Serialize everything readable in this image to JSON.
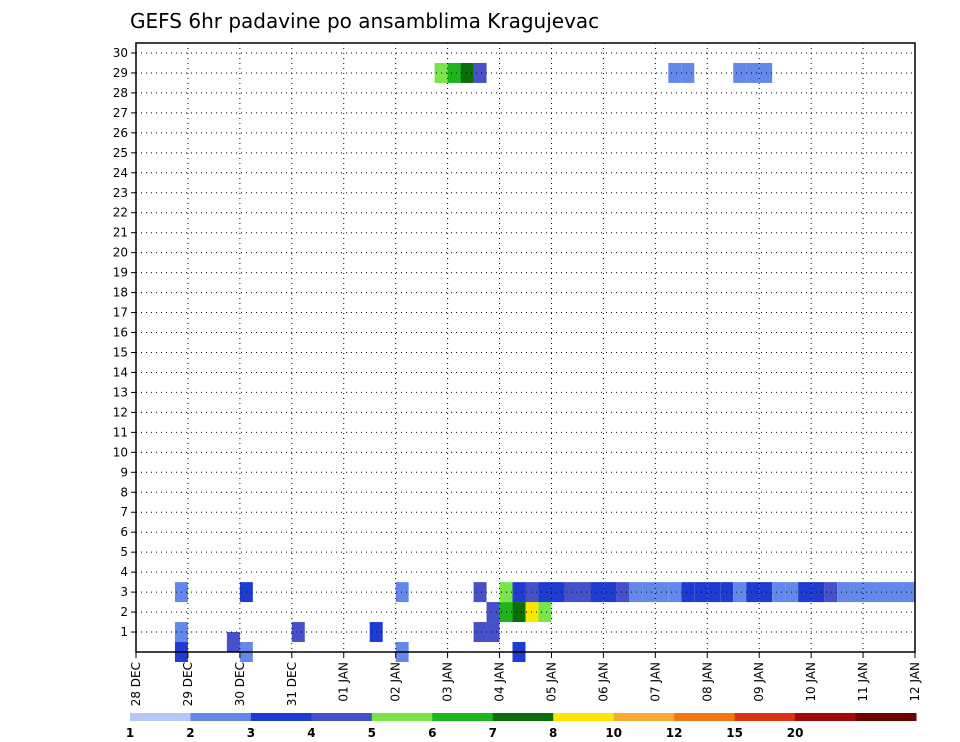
{
  "chart_data": {
    "type": "heatmap",
    "title": "GEFS 6hr padavine po ansamblima Kragujevac",
    "xlabel": "",
    "ylabel": "",
    "x_ticks": [
      "28 DEC",
      "29 DEC",
      "30 DEC",
      "31 DEC",
      "01 JAN",
      "02 JAN",
      "03 JAN",
      "04 JAN",
      "05 JAN",
      "06 JAN",
      "07 JAN",
      "08 JAN",
      "09 JAN",
      "10 JAN",
      "11 JAN",
      "12 JAN"
    ],
    "x_range": [
      0,
      60
    ],
    "x_step": "6 hr",
    "y_ticks": [
      1,
      2,
      3,
      4,
      5,
      6,
      7,
      8,
      9,
      10,
      11,
      12,
      13,
      14,
      15,
      16,
      17,
      18,
      19,
      20,
      21,
      22,
      23,
      24,
      25,
      26,
      27,
      28,
      29,
      30
    ],
    "y_range": [
      0,
      30.5
    ],
    "grid": true,
    "colorbar": {
      "levels": [
        "1",
        "2",
        "3",
        "4",
        "5",
        "6",
        "7",
        "8",
        "10",
        "12",
        "15",
        "20"
      ],
      "colors": [
        "#b4c8f5",
        "#6488ea",
        "#1e3cd2",
        "#4650c8",
        "#78e64b",
        "#1eb41e",
        "#0a6e0a",
        "#fae600",
        "#faaa32",
        "#f07814",
        "#dc3214",
        "#a00a0a",
        "#6e0000"
      ]
    },
    "cells": [
      [
        3,
        0.0,
        2
      ],
      [
        8,
        0.0,
        1
      ],
      [
        20,
        0.0,
        1
      ],
      [
        29,
        0.0,
        2
      ],
      [
        7,
        0.5,
        3
      ],
      [
        3,
        1.0,
        1
      ],
      [
        12,
        1.0,
        3
      ],
      [
        18,
        1.0,
        2
      ],
      [
        26,
        1.0,
        3
      ],
      [
        27,
        1.0,
        3
      ],
      [
        27,
        2.0,
        3
      ],
      [
        28,
        2.0,
        5
      ],
      [
        29,
        2.0,
        6
      ],
      [
        30,
        2.0,
        7
      ],
      [
        31,
        2.0,
        4
      ],
      [
        3,
        3.0,
        1
      ],
      [
        8,
        3.0,
        2
      ],
      [
        20,
        3.0,
        1
      ],
      [
        26,
        3.0,
        3
      ],
      [
        28,
        3.0,
        4
      ],
      [
        29,
        3.0,
        2
      ],
      [
        30,
        3.0,
        3
      ],
      [
        31,
        3.0,
        2
      ],
      [
        32,
        3.0,
        2
      ],
      [
        33,
        3.0,
        3
      ],
      [
        34,
        3.0,
        3
      ],
      [
        35,
        3.0,
        2
      ],
      [
        36,
        3.0,
        2
      ],
      [
        37,
        3.0,
        3
      ],
      [
        38,
        3.0,
        1
      ],
      [
        39,
        3.0,
        1
      ],
      [
        40,
        3.0,
        1
      ],
      [
        41,
        3.0,
        1
      ],
      [
        42,
        3.0,
        2
      ],
      [
        43,
        3.0,
        2
      ],
      [
        44,
        3.0,
        2
      ],
      [
        45,
        3.0,
        2
      ],
      [
        46,
        3.0,
        1
      ],
      [
        47,
        3.0,
        2
      ],
      [
        48,
        3.0,
        2
      ],
      [
        49,
        3.0,
        1
      ],
      [
        50,
        3.0,
        1
      ],
      [
        51,
        3.0,
        2
      ],
      [
        52,
        3.0,
        2
      ],
      [
        53,
        3.0,
        3
      ],
      [
        54,
        3.0,
        1
      ],
      [
        55,
        3.0,
        1
      ],
      [
        56,
        3.0,
        1
      ],
      [
        57,
        3.0,
        1
      ],
      [
        58,
        3.0,
        1
      ],
      [
        59,
        3.0,
        1
      ],
      [
        23,
        29.0,
        4
      ],
      [
        24,
        29.0,
        5
      ],
      [
        25,
        29.0,
        6
      ],
      [
        26,
        29.0,
        3
      ],
      [
        46,
        29.0,
        1
      ],
      [
        47,
        29.0,
        1
      ],
      [
        48,
        29.0,
        1
      ],
      [
        41,
        29.0,
        1
      ],
      [
        42,
        29.0,
        1
      ]
    ]
  }
}
